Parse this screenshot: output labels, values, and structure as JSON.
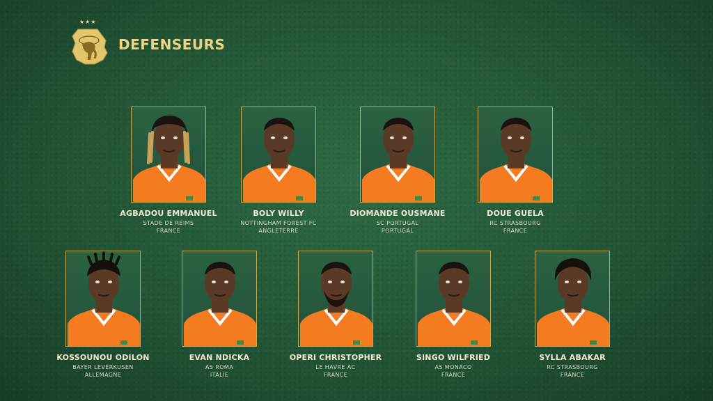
{
  "header": {
    "title": "DEFENSEURS",
    "logo_icon": "elephant-crest-icon",
    "stars": "★★★"
  },
  "colors": {
    "background": "#245838",
    "gold": "#c9a84a",
    "jersey": "#f47b20",
    "skin": "#5a3a26"
  },
  "players": [
    {
      "name": "AGBADOU EMMANUEL",
      "club": "STADE DE REIMS",
      "country": "FRANCE",
      "hair": "dreads"
    },
    {
      "name": "BOLY WILLY",
      "club": "NOTTINGHAM FOREST FC",
      "country": "ANGLETERRE",
      "hair": "short"
    },
    {
      "name": "DIOMANDE OUSMANE",
      "club": "SC PORTUGAL",
      "country": "PORTUGAL",
      "hair": "short"
    },
    {
      "name": "DOUE GUELA",
      "club": "RC STRASBOURG",
      "country": "FRANCE",
      "hair": "short"
    },
    {
      "name": "KOSSOUNOU ODILON",
      "club": "BAYER LEVERKUSEN",
      "country": "ALLEMAGNE",
      "hair": "twists"
    },
    {
      "name": "EVAN NDICKA",
      "club": "AS ROMA",
      "country": "ITALIE",
      "hair": "short"
    },
    {
      "name": "OPERI CHRISTOPHER",
      "club": "LE HAVRE AC",
      "country": "FRANCE",
      "hair": "beard"
    },
    {
      "name": "SINGO WILFRIED",
      "club": "AS MONACO",
      "country": "FRANCE",
      "hair": "short"
    },
    {
      "name": "SYLLA ABAKAR",
      "club": "RC STRASBOURG",
      "country": "FRANCE",
      "hair": "curly"
    }
  ]
}
